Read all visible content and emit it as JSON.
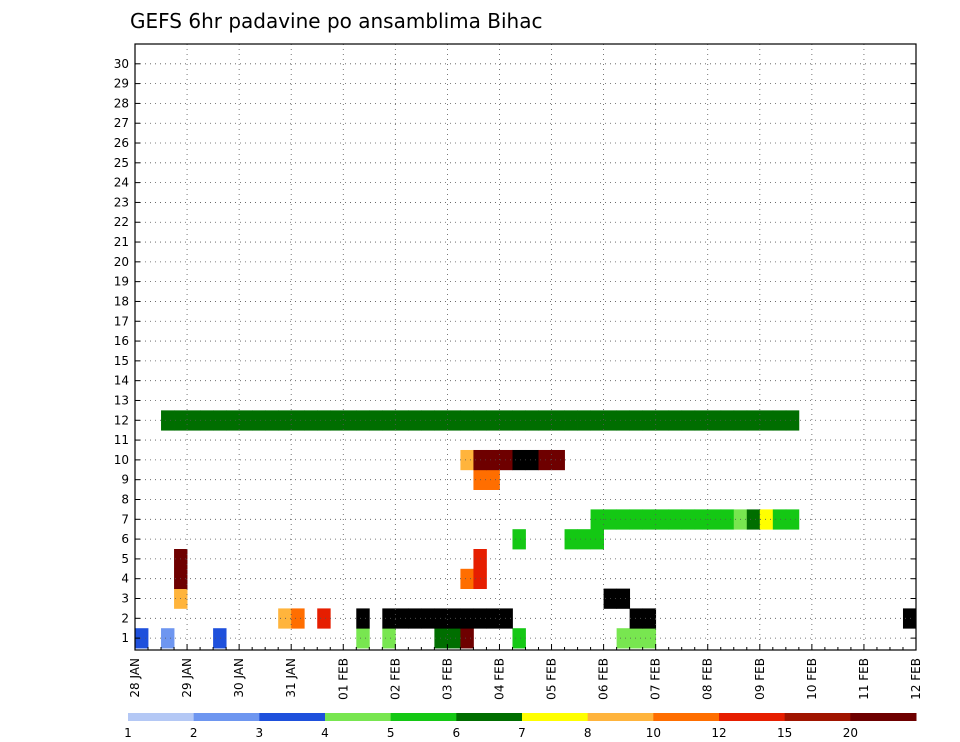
{
  "chart_data": {
    "type": "heatmap",
    "title": "GEFS 6hr padavine po ansamblima Bihac",
    "x_tick_labels": [
      "28 JAN",
      "29 JAN",
      "30 JAN",
      "31 JAN",
      "01 FEB",
      "02 FEB",
      "03 FEB",
      "04 FEB",
      "05 FEB",
      "06 FEB",
      "07 FEB",
      "08 FEB",
      "09 FEB",
      "10 FEB",
      "11 FEB",
      "12 FEB"
    ],
    "y_tick_labels": [
      "1",
      "2",
      "3",
      "4",
      "5",
      "6",
      "7",
      "8",
      "9",
      "10",
      "11",
      "12",
      "13",
      "14",
      "15",
      "16",
      "17",
      "18",
      "19",
      "20",
      "21",
      "22",
      "23",
      "24",
      "25",
      "26",
      "27",
      "28",
      "29",
      "30"
    ],
    "xlabel": "",
    "ylabel": "",
    "x_range_steps": [
      0,
      60
    ],
    "y_range_members": [
      0,
      30
    ],
    "grid": true,
    "colorbar": {
      "labels": [
        "1",
        "2",
        "3",
        "4",
        "5",
        "6",
        "7",
        "8",
        "10",
        "12",
        "15",
        "20"
      ],
      "colors": [
        "#b4c8f5",
        "#6e96f0",
        "#1e50dc",
        "#78e650",
        "#14c814",
        "#006e00",
        "#ffff00",
        "#ffb43c",
        "#ff6e00",
        "#e61e00",
        "#a01400",
        "#6e0000"
      ]
    },
    "cells": [
      [
        0,
        0,
        2
      ],
      [
        2,
        0,
        1
      ],
      [
        6,
        0,
        2
      ],
      [
        17,
        0,
        3
      ],
      [
        19,
        0,
        3
      ],
      [
        23,
        0,
        5
      ],
      [
        24,
        0,
        5
      ],
      [
        25,
        0,
        11
      ],
      [
        29,
        0,
        4
      ],
      [
        37,
        0,
        3
      ],
      [
        38,
        0,
        3
      ],
      [
        39,
        0,
        3
      ],
      [
        11,
        1,
        7
      ],
      [
        12,
        1,
        8
      ],
      [
        14,
        1,
        9
      ],
      [
        17,
        1,
        12
      ],
      [
        19,
        1,
        12
      ],
      [
        20,
        1,
        12
      ],
      [
        21,
        1,
        12
      ],
      [
        22,
        1,
        12
      ],
      [
        23,
        1,
        13
      ],
      [
        24,
        1,
        13
      ],
      [
        25,
        1,
        14
      ],
      [
        26,
        1,
        15
      ],
      [
        27,
        1,
        13
      ],
      [
        28,
        1,
        14
      ],
      [
        38,
        1,
        13
      ],
      [
        39,
        1,
        12
      ],
      [
        59,
        1,
        14
      ],
      [
        3,
        2,
        7
      ],
      [
        36,
        2,
        13
      ],
      [
        37,
        2,
        13
      ],
      [
        3,
        3,
        11
      ],
      [
        3,
        4,
        11
      ],
      [
        25,
        3,
        8
      ],
      [
        26,
        3,
        9
      ],
      [
        26,
        4,
        9
      ],
      [
        29,
        5,
        4
      ],
      [
        33,
        5,
        4
      ],
      [
        34,
        5,
        4
      ],
      [
        35,
        5,
        4
      ],
      [
        35,
        6,
        4
      ],
      [
        36,
        6,
        4
      ],
      [
        37,
        6,
        4
      ],
      [
        38,
        6,
        4
      ],
      [
        39,
        6,
        4
      ],
      [
        40,
        6,
        4
      ],
      [
        41,
        6,
        4
      ],
      [
        42,
        6,
        4
      ],
      [
        43,
        6,
        4
      ],
      [
        44,
        6,
        4
      ],
      [
        45,
        6,
        4
      ],
      [
        46,
        6,
        3
      ],
      [
        47,
        6,
        5
      ],
      [
        48,
        6,
        6
      ],
      [
        49,
        6,
        4
      ],
      [
        50,
        6,
        4
      ],
      [
        26,
        8,
        8
      ],
      [
        27,
        8,
        8
      ],
      [
        25,
        9,
        7
      ],
      [
        26,
        9,
        11
      ],
      [
        27,
        9,
        11
      ],
      [
        28,
        9,
        11
      ],
      [
        29,
        9,
        12
      ],
      [
        30,
        9,
        12
      ],
      [
        31,
        9,
        11
      ],
      [
        32,
        9,
        11
      ],
      [
        2,
        11,
        5
      ],
      [
        3,
        11,
        5
      ],
      [
        4,
        11,
        5
      ],
      [
        5,
        11,
        5
      ],
      [
        6,
        11,
        5
      ],
      [
        7,
        11,
        5
      ],
      [
        8,
        11,
        5
      ],
      [
        9,
        11,
        5
      ],
      [
        10,
        11,
        5
      ],
      [
        11,
        11,
        5
      ],
      [
        12,
        11,
        5
      ],
      [
        13,
        11,
        5
      ],
      [
        14,
        11,
        5
      ],
      [
        15,
        11,
        5
      ],
      [
        16,
        11,
        5
      ],
      [
        17,
        11,
        5
      ],
      [
        18,
        11,
        5
      ],
      [
        19,
        11,
        5
      ],
      [
        20,
        11,
        5
      ],
      [
        21,
        11,
        5
      ],
      [
        22,
        11,
        5
      ],
      [
        23,
        11,
        5
      ],
      [
        24,
        11,
        5
      ],
      [
        25,
        11,
        5
      ],
      [
        26,
        11,
        5
      ],
      [
        27,
        11,
        5
      ],
      [
        28,
        11,
        5
      ],
      [
        29,
        11,
        5
      ],
      [
        30,
        11,
        5
      ],
      [
        31,
        11,
        5
      ],
      [
        32,
        11,
        5
      ],
      [
        33,
        11,
        5
      ],
      [
        34,
        11,
        5
      ],
      [
        35,
        11,
        5
      ],
      [
        36,
        11,
        5
      ],
      [
        37,
        11,
        5
      ],
      [
        38,
        11,
        5
      ],
      [
        39,
        11,
        5
      ],
      [
        40,
        11,
        5
      ],
      [
        41,
        11,
        5
      ],
      [
        42,
        11,
        5
      ],
      [
        43,
        11,
        5
      ],
      [
        44,
        11,
        5
      ],
      [
        45,
        11,
        5
      ],
      [
        46,
        11,
        5
      ],
      [
        47,
        11,
        5
      ],
      [
        48,
        11,
        5
      ],
      [
        49,
        11,
        5
      ],
      [
        50,
        11,
        5
      ]
    ]
  }
}
